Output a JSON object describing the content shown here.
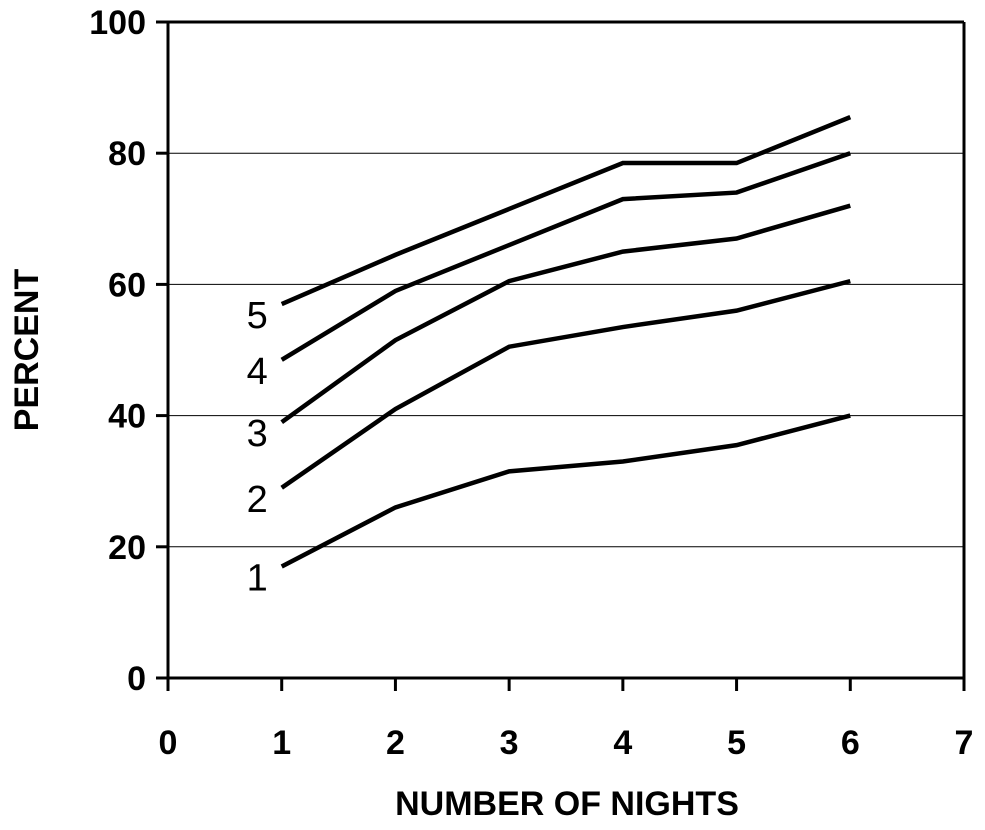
{
  "chart_data": {
    "type": "line",
    "title": "",
    "xlabel": "NUMBER OF NIGHTS",
    "ylabel": "PERCENT",
    "xlim": [
      0,
      7
    ],
    "ylim": [
      0,
      100
    ],
    "x_ticks": [
      0,
      1,
      2,
      3,
      4,
      5,
      6,
      7
    ],
    "y_ticks": [
      0,
      20,
      40,
      60,
      80,
      100
    ],
    "grid": "horizontal",
    "legend": "none",
    "line_color": "#000000",
    "x": [
      1,
      2,
      3,
      4,
      5,
      6
    ],
    "series": [
      {
        "name": "1",
        "values": [
          17,
          26,
          31.5,
          33,
          35.5,
          40
        ]
      },
      {
        "name": "2",
        "values": [
          29,
          41,
          50.5,
          53.5,
          56,
          60.5
        ]
      },
      {
        "name": "3",
        "values": [
          39,
          51.5,
          60.5,
          65,
          67,
          72
        ]
      },
      {
        "name": "4",
        "values": [
          48.5,
          59,
          66,
          73,
          74,
          80
        ]
      },
      {
        "name": "5",
        "values": [
          57,
          64.5,
          71.5,
          78.5,
          78.5,
          85.5
        ]
      }
    ]
  }
}
